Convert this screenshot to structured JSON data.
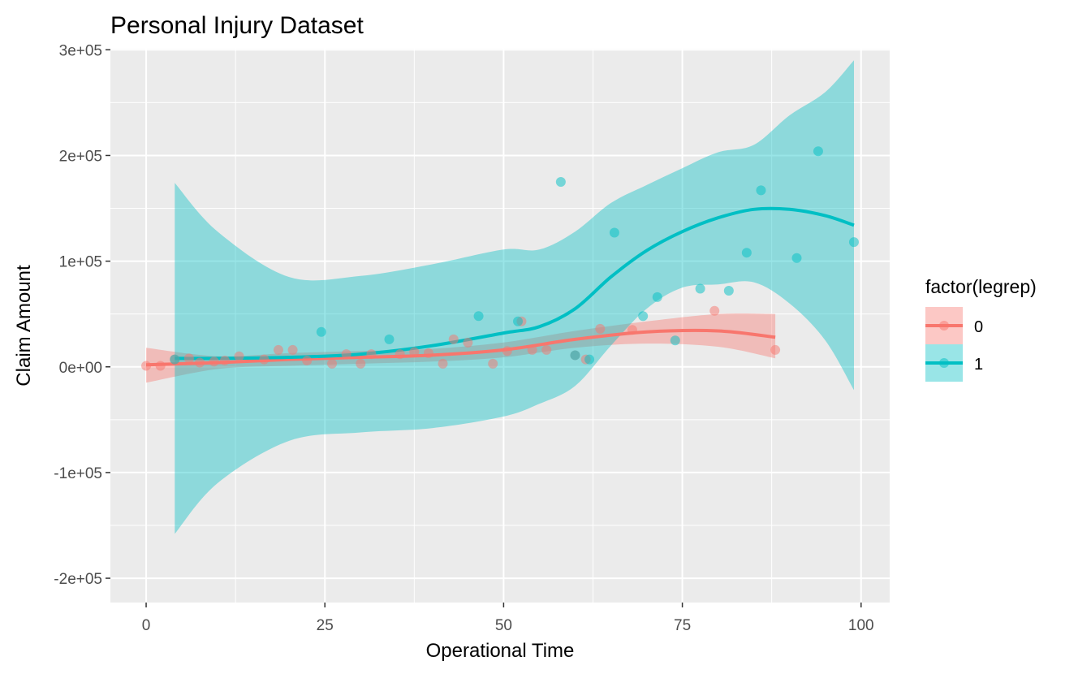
{
  "chart_data": {
    "type": "scatter",
    "title": "Personal Injury Dataset",
    "xlabel": "Operational Time",
    "ylabel": "Claim Amount",
    "xlim": [
      -5,
      104
    ],
    "ylim": [
      -223000,
      301000
    ],
    "x_ticks": [
      0,
      25,
      50,
      75,
      100
    ],
    "x_tick_labels": [
      "0",
      "25",
      "50",
      "75",
      "100"
    ],
    "y_ticks": [
      -200000,
      -100000,
      0,
      100000,
      200000,
      300000
    ],
    "y_tick_labels": [
      "-2e+05",
      "-1e+05",
      "0e+00",
      "1e+05",
      "2e+05",
      "3e+05"
    ],
    "grid": true,
    "legend": {
      "title": "factor(legrep)",
      "position": "right",
      "entries": [
        {
          "label": "0",
          "color": "#F8766D"
        },
        {
          "label": "1",
          "color": "#00BFC4"
        }
      ]
    },
    "series": [
      {
        "name": "0",
        "color": "#F8766D",
        "points": [
          [
            0,
            1000
          ],
          [
            2,
            1000
          ],
          [
            4,
            7000
          ],
          [
            6,
            8000
          ],
          [
            7.5,
            4000
          ],
          [
            9.5,
            5000
          ],
          [
            11,
            6000
          ],
          [
            13,
            10000
          ],
          [
            16.5,
            7000
          ],
          [
            18.5,
            16000
          ],
          [
            20.5,
            16000
          ],
          [
            22.5,
            6000
          ],
          [
            26,
            3000
          ],
          [
            28,
            12000
          ],
          [
            30,
            3000
          ],
          [
            31.5,
            12000
          ],
          [
            35.5,
            12000
          ],
          [
            37.5,
            14000
          ],
          [
            39.5,
            13000
          ],
          [
            41.5,
            3000
          ],
          [
            43,
            26000
          ],
          [
            45,
            23000
          ],
          [
            48.5,
            3000
          ],
          [
            50.5,
            15000
          ],
          [
            52.5,
            43000
          ],
          [
            54,
            16000
          ],
          [
            56,
            16000
          ],
          [
            60,
            11000
          ],
          [
            61.5,
            7000
          ],
          [
            63.5,
            36000
          ],
          [
            68,
            35000
          ],
          [
            79.5,
            53000
          ],
          [
            88,
            16000
          ]
        ],
        "smooth": {
          "x": [
            0,
            10,
            20,
            30,
            40,
            50,
            60,
            70,
            80,
            88
          ],
          "y": [
            2000,
            4000,
            7000,
            9000,
            11000,
            16000,
            26000,
            33000,
            34000,
            28000
          ],
          "lower": [
            -15000,
            -2000,
            1000,
            3000,
            5000,
            9000,
            18000,
            22000,
            19000,
            8000
          ],
          "upper": [
            18000,
            10000,
            13000,
            15000,
            17000,
            23000,
            34000,
            43000,
            50000,
            50000
          ]
        }
      },
      {
        "name": "1",
        "color": "#00BFC4",
        "points": [
          [
            4,
            7000
          ],
          [
            24.5,
            33000
          ],
          [
            34,
            26000
          ],
          [
            46.5,
            48000
          ],
          [
            52,
            43000
          ],
          [
            58,
            175000
          ],
          [
            60,
            11000
          ],
          [
            62,
            7000
          ],
          [
            65.5,
            127000
          ],
          [
            69.5,
            48000
          ],
          [
            71.5,
            66000
          ],
          [
            74,
            25000
          ],
          [
            77.5,
            74000
          ],
          [
            81.5,
            72000
          ],
          [
            84,
            108000
          ],
          [
            86,
            167000
          ],
          [
            91,
            103000
          ],
          [
            94,
            204000
          ],
          [
            99,
            118000
          ]
        ],
        "smooth": {
          "x": [
            4,
            10,
            20,
            30,
            40,
            50,
            55,
            60,
            65,
            70,
            75,
            80,
            85,
            90,
            95,
            99
          ],
          "y": [
            8000,
            8000,
            9000,
            12000,
            20000,
            32000,
            38000,
            55000,
            85000,
            110000,
            128000,
            141000,
            149000,
            149000,
            143000,
            134000
          ],
          "lower": [
            -158000,
            -110000,
            -70000,
            -62000,
            -58000,
            -47000,
            -35000,
            -18000,
            20000,
            55000,
            75000,
            78000,
            80000,
            60000,
            25000,
            -22000
          ],
          "upper": [
            174000,
            128000,
            85000,
            86000,
            97000,
            111000,
            111000,
            128000,
            155000,
            172000,
            188000,
            203000,
            210000,
            238000,
            260000,
            290000
          ]
        }
      }
    ]
  }
}
